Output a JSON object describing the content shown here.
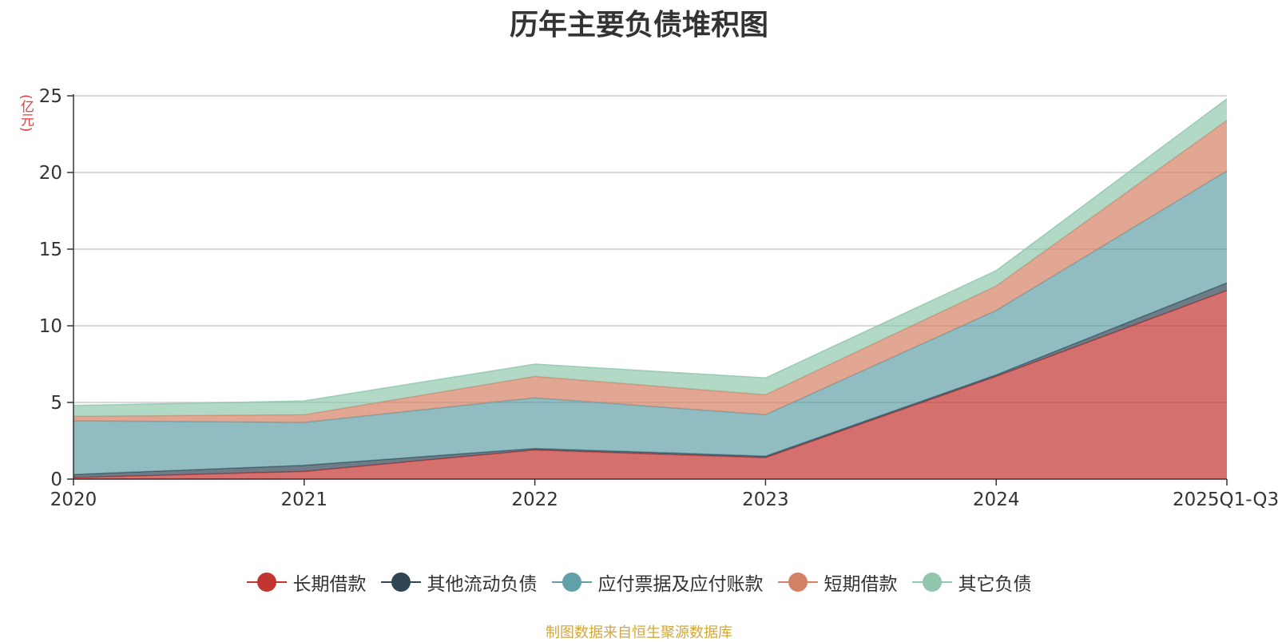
{
  "unit_label": "(亿元)",
  "source_note": "制图数据来自恒生聚源数据库",
  "chart_data": {
    "type": "area",
    "stacked": true,
    "title": "历年主要负债堆积图",
    "categories": [
      "2020",
      "2021",
      "2022",
      "2023",
      "2024",
      "2025Q1-Q3"
    ],
    "ylim": [
      0,
      25
    ],
    "yticks": [
      0,
      5,
      10,
      15,
      20,
      25
    ],
    "grid": true,
    "legend_position": "bottom",
    "series": [
      {
        "name": "长期借款",
        "color": "#c23531",
        "values": [
          0.1,
          0.5,
          1.9,
          1.4,
          6.7,
          12.3
        ]
      },
      {
        "name": "其他流动负债",
        "color": "#2f4554",
        "values": [
          0.2,
          0.4,
          0.1,
          0.1,
          0.1,
          0.5
        ]
      },
      {
        "name": "应付票据及应付账款",
        "color": "#61a0a8",
        "values": [
          3.5,
          2.8,
          3.3,
          2.7,
          4.2,
          7.3
        ]
      },
      {
        "name": "短期借款",
        "color": "#d48265",
        "values": [
          0.3,
          0.5,
          1.4,
          1.3,
          1.6,
          3.3
        ]
      },
      {
        "name": "其它负债",
        "color": "#91c7ae",
        "values": [
          0.7,
          0.9,
          0.8,
          1.1,
          1.0,
          1.4
        ]
      }
    ]
  }
}
